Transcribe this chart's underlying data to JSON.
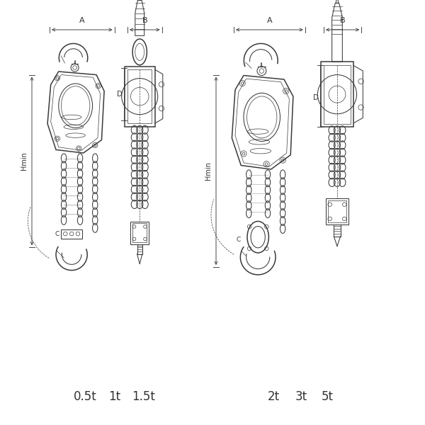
{
  "bg_color": "#ffffff",
  "line_color": "#3a3a3a",
  "dim_color": "#3a3a3a",
  "text_color": "#333333",
  "title_left_labels": [
    "0.5t",
    "1t",
    "1.5t"
  ],
  "title_right_labels": [
    "2t",
    "3t",
    "5t"
  ],
  "label_A": "A",
  "label_B": "B",
  "label_D": "D",
  "label_Hmin": "Hmin",
  "label_C": "C",
  "lw_main": 1.1,
  "lw_med": 0.75,
  "lw_thin": 0.5,
  "lw_dim": 0.65
}
